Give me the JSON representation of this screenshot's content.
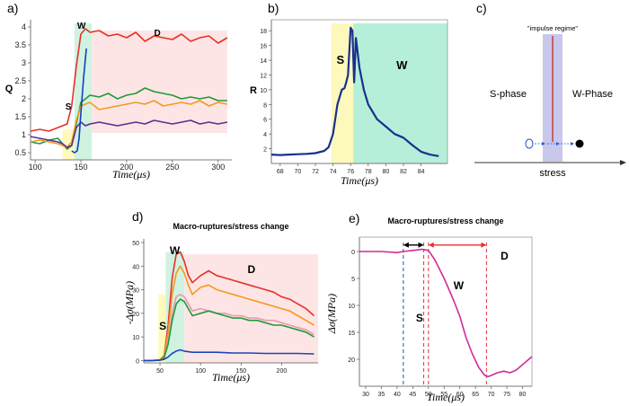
{
  "chart_data": [
    {
      "id": "a",
      "panel_label": "a)",
      "type": "line",
      "xlabel": "Time(μs)",
      "ylabel": "Q",
      "xlim": [
        95,
        315
      ],
      "ylim": [
        0.3,
        4.1
      ],
      "x_ticks": [
        100,
        150,
        200,
        250,
        300
      ],
      "y_ticks": [
        0.5,
        1,
        1.5,
        2,
        2.5,
        3,
        3.5,
        4
      ],
      "regions": [
        {
          "name": "S",
          "x0": 130,
          "x1": 143,
          "y0": 0.3,
          "y1": 1.15,
          "color": "#fff9b0"
        },
        {
          "name": "W",
          "x0": 143,
          "x1": 162,
          "y0": 0.3,
          "y1": 4.1,
          "color": "#c8f0dc"
        },
        {
          "name": "D",
          "x0": 162,
          "x1": 310,
          "y0": 1.05,
          "y1": 3.9,
          "color": "#fde0e0"
        }
      ],
      "annotations": [
        {
          "text": "S",
          "x": 133,
          "y": 1.7
        },
        {
          "text": "W",
          "x": 146,
          "y": 3.95
        },
        {
          "text": "D",
          "x": 230,
          "y": 3.75
        }
      ],
      "series": [
        {
          "name": "red",
          "color": "#e8302a",
          "x": [
            95,
            105,
            115,
            125,
            130,
            135,
            140,
            145,
            150,
            155,
            160,
            170,
            180,
            190,
            200,
            210,
            220,
            230,
            240,
            250,
            260,
            270,
            280,
            290,
            300,
            310
          ],
          "y": [
            1.1,
            1.15,
            1.1,
            1.2,
            1.25,
            1.3,
            1.8,
            2.9,
            3.8,
            3.95,
            3.85,
            3.9,
            3.75,
            3.8,
            3.7,
            3.85,
            3.6,
            3.75,
            3.7,
            3.65,
            3.8,
            3.6,
            3.7,
            3.75,
            3.55,
            3.7
          ]
        },
        {
          "name": "green",
          "color": "#1f9a3a",
          "x": [
            95,
            105,
            115,
            125,
            130,
            135,
            140,
            145,
            150,
            155,
            160,
            170,
            180,
            190,
            200,
            210,
            220,
            230,
            240,
            250,
            260,
            270,
            280,
            290,
            300,
            310
          ],
          "y": [
            0.8,
            0.75,
            0.85,
            0.9,
            0.75,
            0.6,
            0.7,
            1.3,
            1.9,
            2.0,
            2.1,
            2.05,
            2.15,
            2.0,
            2.1,
            2.15,
            2.3,
            2.2,
            2.15,
            2.1,
            2.0,
            2.05,
            2.0,
            2.05,
            1.95,
            1.95
          ]
        },
        {
          "name": "orange",
          "color": "#f39a1e",
          "x": [
            95,
            105,
            115,
            125,
            130,
            135,
            140,
            145,
            150,
            155,
            160,
            170,
            180,
            190,
            200,
            210,
            220,
            230,
            240,
            250,
            260,
            270,
            280,
            290,
            300,
            310
          ],
          "y": [
            0.8,
            0.85,
            0.8,
            0.75,
            0.7,
            0.65,
            0.8,
            1.4,
            1.8,
            1.85,
            1.9,
            1.7,
            1.75,
            1.8,
            1.85,
            1.9,
            1.85,
            1.95,
            1.8,
            1.85,
            1.9,
            1.85,
            1.95,
            1.8,
            1.9,
            1.85
          ]
        },
        {
          "name": "purple",
          "color": "#5a2e94",
          "x": [
            95,
            105,
            115,
            125,
            130,
            135,
            140,
            145,
            150,
            155,
            160,
            170,
            180,
            190,
            200,
            210,
            220,
            230,
            240,
            250,
            260,
            270,
            280,
            290,
            300,
            310
          ],
          "y": [
            0.95,
            0.9,
            0.85,
            0.8,
            0.75,
            0.65,
            0.7,
            1.2,
            1.35,
            1.25,
            1.3,
            1.35,
            1.3,
            1.25,
            1.3,
            1.35,
            1.3,
            1.4,
            1.35,
            1.3,
            1.35,
            1.4,
            1.3,
            1.35,
            1.3,
            1.35
          ]
        },
        {
          "name": "blue",
          "color": "#1440c0",
          "x": [
            140,
            143,
            146,
            148,
            150,
            153,
            156
          ],
          "y": [
            0.55,
            0.5,
            0.55,
            0.9,
            1.6,
            2.6,
            3.4
          ]
        }
      ]
    },
    {
      "id": "b",
      "panel_label": "b)",
      "type": "line",
      "xlabel": "Time(μs)",
      "ylabel": "R",
      "xlim": [
        67,
        87
      ],
      "ylim": [
        0,
        19
      ],
      "x_ticks": [
        68,
        70,
        72,
        74,
        76,
        78,
        80,
        82,
        84
      ],
      "y_ticks": [
        2,
        4,
        6,
        8,
        10,
        12,
        14,
        16,
        18
      ],
      "regions": [
        {
          "name": "S",
          "x0": 73.8,
          "x1": 76.3,
          "y0": 0,
          "y1": 19,
          "color": "#fdf7b0"
        },
        {
          "name": "W",
          "x0": 76.3,
          "x1": 87,
          "y0": 0,
          "y1": 19,
          "color": "#a8ecd2"
        }
      ],
      "annotations": [
        {
          "text": "S",
          "x": 74.4,
          "y": 13.5,
          "color": "#1ea0e0"
        },
        {
          "text": "W",
          "x": 81.2,
          "y": 12.8,
          "color": "#e0108c"
        }
      ],
      "series": [
        {
          "name": "R",
          "color": "#1a2f8f",
          "x": [
            67,
            68,
            69,
            70,
            71,
            72,
            73,
            73.5,
            74,
            74.5,
            75,
            75.3,
            75.5,
            75.7,
            76,
            76.2,
            76.4,
            76.6,
            77,
            77.5,
            78,
            78.5,
            79,
            80,
            81,
            82,
            83,
            84,
            85,
            86
          ],
          "y": [
            1.2,
            1.15,
            1.2,
            1.25,
            1.3,
            1.4,
            1.7,
            2.2,
            4,
            8,
            10,
            10.2,
            11,
            12,
            18.4,
            18,
            11,
            17,
            13,
            10,
            8,
            7,
            6,
            5,
            4,
            3.5,
            2.5,
            1.6,
            1.2,
            1.0
          ]
        }
      ]
    },
    {
      "id": "c",
      "panel_label": "c)",
      "type": "diagram",
      "xlabel": "stress",
      "regime_label": "\"impulse regime\"",
      "left_label": "S-phase",
      "right_label": "W-Phase"
    },
    {
      "id": "d",
      "panel_label": "d)",
      "type": "line",
      "title": "Macro-ruptures/stress change",
      "xlabel": "Time(μs)",
      "ylabel": "-Δσ(MPa)",
      "xlim": [
        30,
        245
      ],
      "ylim": [
        -1,
        50
      ],
      "x_ticks": [
        50,
        100,
        150,
        200
      ],
      "y_ticks": [
        0,
        10,
        20,
        30,
        40,
        50
      ],
      "regions": [
        {
          "name": "S",
          "x0": 48,
          "x1": 57,
          "y0": -1,
          "y1": 28,
          "color": "#fff9b0"
        },
        {
          "name": "W",
          "x0": 57,
          "x1": 80,
          "y0": -1,
          "y1": 46,
          "color": "#c8f0dc"
        },
        {
          "name": "D",
          "x0": 80,
          "x1": 245,
          "y0": -1,
          "y1": 45,
          "color": "#fde0e0"
        }
      ],
      "annotations": [
        {
          "text": "S",
          "x": 49,
          "y": 13
        },
        {
          "text": "W",
          "x": 62,
          "y": 45
        },
        {
          "text": "D",
          "x": 158,
          "y": 37
        }
      ],
      "series": [
        {
          "name": "red",
          "color": "#e8302a",
          "x": [
            30,
            40,
            50,
            55,
            60,
            65,
            70,
            75,
            80,
            85,
            90,
            100,
            110,
            120,
            130,
            140,
            150,
            160,
            170,
            180,
            190,
            200,
            210,
            220,
            230,
            240
          ],
          "y": [
            0,
            0,
            0.3,
            2,
            15,
            35,
            45,
            46,
            42,
            36,
            33,
            36,
            38,
            36,
            35,
            34,
            33,
            32,
            31,
            30,
            29,
            27,
            26,
            24,
            22,
            19
          ]
        },
        {
          "name": "orange",
          "color": "#f39a1e",
          "x": [
            30,
            40,
            50,
            55,
            60,
            65,
            70,
            75,
            80,
            85,
            90,
            100,
            110,
            120,
            130,
            140,
            150,
            160,
            170,
            180,
            190,
            200,
            210,
            220,
            230,
            240
          ],
          "y": [
            0,
            0,
            0.3,
            1.5,
            12,
            28,
            37,
            40,
            37,
            32,
            28,
            31,
            32,
            30,
            29,
            28,
            27,
            26,
            25,
            24,
            23,
            22,
            21,
            19,
            17,
            15
          ]
        },
        {
          "name": "pink",
          "color": "#e79ab0",
          "x": [
            30,
            40,
            50,
            55,
            60,
            65,
            70,
            75,
            80,
            85,
            90,
            100,
            110,
            120,
            130,
            140,
            150,
            160,
            170,
            180,
            190,
            200,
            210,
            220,
            230,
            240
          ],
          "y": [
            0,
            0,
            0.2,
            1,
            8,
            20,
            27,
            28,
            27,
            24,
            21,
            22,
            21,
            20,
            20,
            19,
            19,
            18,
            18,
            17,
            17,
            16,
            15,
            14,
            13,
            11
          ]
        },
        {
          "name": "green",
          "color": "#1f9a3a",
          "x": [
            30,
            40,
            50,
            55,
            60,
            65,
            70,
            75,
            80,
            85,
            90,
            100,
            110,
            120,
            130,
            140,
            150,
            160,
            170,
            180,
            190,
            200,
            210,
            220,
            230,
            240
          ],
          "y": [
            0,
            0,
            0.2,
            1,
            7,
            17,
            24,
            26,
            25,
            22,
            19,
            20,
            21,
            20,
            19,
            18,
            18,
            17,
            17,
            16,
            15,
            15,
            14,
            13,
            12,
            10
          ]
        },
        {
          "name": "blue",
          "color": "#1c46b8",
          "x": [
            30,
            40,
            50,
            55,
            60,
            65,
            70,
            75,
            80,
            90,
            100,
            120,
            140,
            160,
            180,
            200,
            220,
            240
          ],
          "y": [
            0,
            0,
            0.1,
            0.5,
            1.5,
            3,
            4,
            4.5,
            4,
            3.5,
            3.5,
            3.5,
            3.2,
            3.2,
            3,
            3,
            3,
            2.8
          ]
        }
      ]
    },
    {
      "id": "e",
      "panel_label": "e)",
      "type": "line",
      "title": "Macro-ruptures/stress change",
      "xlabel": "Time(μs)",
      "ylabel": "Δσ(MPa)",
      "xlim": [
        28,
        83
      ],
      "ylim": [
        -25,
        2
      ],
      "x_ticks": [
        30,
        35,
        40,
        45,
        50,
        55,
        60,
        65,
        70,
        75,
        80
      ],
      "y_ticks": [
        0,
        -5,
        -10,
        -15,
        -20
      ],
      "y_tick_labels": [
        "0",
        "5",
        "10",
        "15",
        "20"
      ],
      "vlines": [
        {
          "x": 42,
          "color": "#2050b0"
        },
        {
          "x": 48.5,
          "color": "#e83030"
        },
        {
          "x": 50,
          "color": "#e83030"
        },
        {
          "x": 68.5,
          "color": "#e83030"
        }
      ],
      "arrows": [
        {
          "x0": 42,
          "x1": 48.5,
          "y": 1.2,
          "color": "#000000"
        },
        {
          "x0": 50,
          "x1": 68.5,
          "y": 1.2,
          "color": "#e83030"
        }
      ],
      "annotations": [
        {
          "text": "S",
          "x": 46,
          "y": -13
        },
        {
          "text": "W",
          "x": 58,
          "y": -7
        },
        {
          "text": "D",
          "x": 73,
          "y": -1.5
        }
      ],
      "series": [
        {
          "name": "stress",
          "color": "#d02c9a",
          "x": [
            28,
            30,
            35,
            40,
            42,
            45,
            48,
            50,
            52,
            55,
            58,
            60,
            62,
            64,
            66,
            68,
            69,
            70,
            72,
            74,
            76,
            78,
            80,
            83
          ],
          "y": [
            0,
            0,
            0,
            -0.2,
            0,
            0.2,
            0.4,
            0.2,
            -1.5,
            -5,
            -9,
            -12,
            -16,
            -19,
            -21.5,
            -23,
            -23.2,
            -23,
            -22.5,
            -22.2,
            -22.5,
            -22,
            -21,
            -19.5
          ]
        }
      ]
    }
  ]
}
